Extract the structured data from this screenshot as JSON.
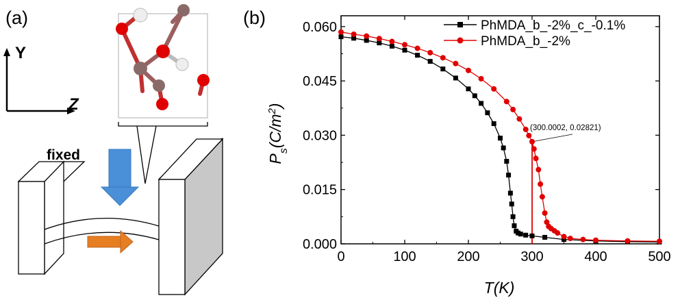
{
  "panel_a": {
    "label": "(a)",
    "axis_y": "Y",
    "axis_z": "Z",
    "fixed_label": "fixed",
    "colors": {
      "oxygen": "#e00000",
      "carbon": "#8a6a68",
      "hydrogen": "#f2f2f2",
      "push_arrow": "#4a90d9",
      "move_arrow": "#e67e22",
      "clamp_side": "#c8c8c8"
    }
  },
  "panel_b": {
    "label": "(b)",
    "annotation": "(300.0002, 0.02821)"
  },
  "chart_data": {
    "type": "scatter",
    "xlabel": "T(K)",
    "ylabel": "Ps(C/m2)",
    "ylabel_main": "P",
    "ylabel_sub": "s",
    "ylabel_unit": "(C/m",
    "ylabel_sup": "2",
    "ylabel_close": ")",
    "xlim": [
      0,
      500
    ],
    "ylim": [
      0,
      0.063
    ],
    "x_ticks": [
      0,
      100,
      200,
      300,
      400,
      500
    ],
    "x_tick_labels": [
      "0",
      "100",
      "200",
      "300",
      "400",
      "500"
    ],
    "y_ticks": [
      0,
      0.015,
      0.03,
      0.045,
      0.06
    ],
    "y_tick_labels": [
      "0.000",
      "0.015",
      "0.030",
      "0.045",
      "0.060"
    ],
    "legend_position": "top-right",
    "series": [
      {
        "name": "PhMDA_b_-2%_c_-0.1%",
        "color": "#000000",
        "marker": "square",
        "x": [
          0,
          20,
          40,
          60,
          80,
          100,
          120,
          140,
          160,
          180,
          200,
          210,
          220,
          230,
          240,
          250,
          255,
          260,
          263,
          266,
          268,
          270,
          272,
          275,
          278,
          282,
          290,
          300,
          320,
          350,
          400,
          450,
          500
        ],
        "y": [
          0.0572,
          0.0568,
          0.0562,
          0.0555,
          0.0546,
          0.0535,
          0.0521,
          0.0504,
          0.0483,
          0.0458,
          0.0428,
          0.0409,
          0.0388,
          0.0362,
          0.0332,
          0.0292,
          0.0265,
          0.0228,
          0.019,
          0.014,
          0.011,
          0.0075,
          0.005,
          0.0035,
          0.003,
          0.0027,
          0.0024,
          0.0022,
          0.0018,
          0.0012,
          0.0008,
          0.0006,
          0.0005
        ]
      },
      {
        "name": "PhMDA_b_-2%",
        "color": "#e00000",
        "marker": "circle",
        "x": [
          0,
          20,
          40,
          60,
          80,
          100,
          120,
          140,
          160,
          180,
          200,
          220,
          240,
          260,
          270,
          280,
          290,
          295,
          300,
          303,
          306,
          310,
          313,
          316,
          320,
          323,
          326,
          330,
          335,
          340,
          350,
          360,
          380,
          400,
          450,
          500
        ],
        "y": [
          0.0585,
          0.0579,
          0.0574,
          0.0567,
          0.0559,
          0.055,
          0.054,
          0.0528,
          0.0514,
          0.0498,
          0.0479,
          0.0456,
          0.0428,
          0.0393,
          0.0371,
          0.0345,
          0.0316,
          0.0299,
          0.02821,
          0.0262,
          0.0236,
          0.0205,
          0.0165,
          0.013,
          0.0085,
          0.006,
          0.0048,
          0.0042,
          0.0036,
          0.003,
          0.002,
          0.0015,
          0.0012,
          0.001,
          0.0008,
          0.0007
        ]
      }
    ]
  }
}
